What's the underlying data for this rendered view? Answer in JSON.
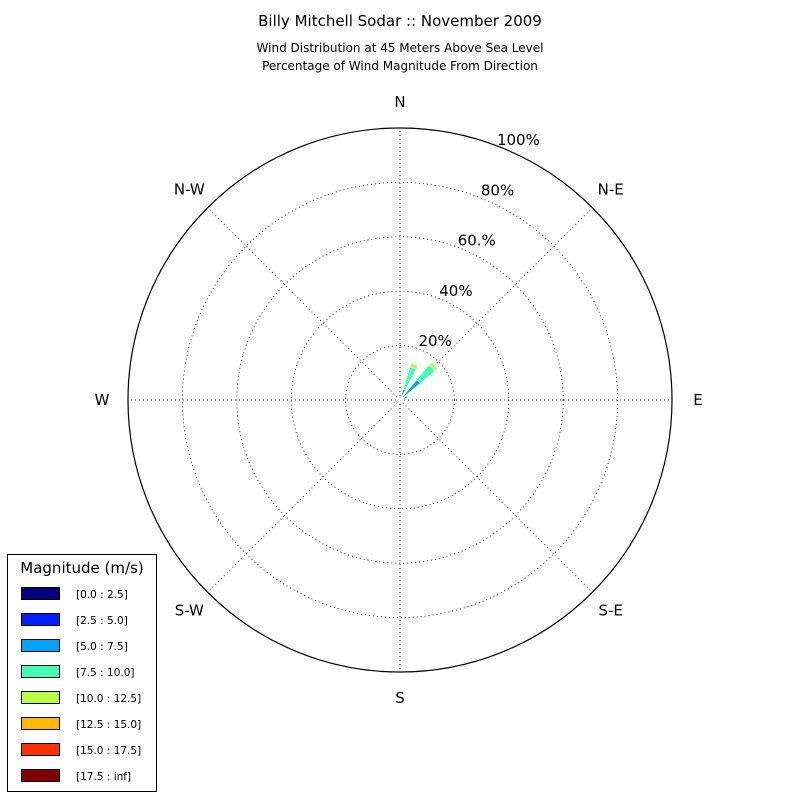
{
  "chart_data": {
    "type": "polar-bar",
    "title": "Billy Mitchell Sodar :: November 2009",
    "subtitle_lines": [
      "Wind Distribution at 45 Meters Above Sea Level",
      "Percentage of Wind Magnitude From Direction"
    ],
    "direction_labels": [
      "N",
      "N-E",
      "E",
      "S-E",
      "S",
      "S-W",
      "W",
      "N-W"
    ],
    "radial_ticks": [
      {
        "value": 20,
        "label": "20%"
      },
      {
        "value": 40,
        "label": "40%"
      },
      {
        "value": 60,
        "label": "60.%"
      },
      {
        "value": 80,
        "label": "80%"
      },
      {
        "value": 100,
        "label": "100%"
      }
    ],
    "rmax": 100,
    "sector_width_deg": 11.25,
    "grid": true,
    "legend_title": "Magnitude (m/s)",
    "legend_placement": "lower-left",
    "bins": [
      {
        "label": "[0.0 : 2.5]",
        "color": "#000080"
      },
      {
        "label": "[2.5 : 5.0]",
        "color": "#0020ff"
      },
      {
        "label": "[5.0 : 7.5]",
        "color": "#00a4ff"
      },
      {
        "label": "[7.5 : 10.0]",
        "color": "#40ffb7"
      },
      {
        "label": "[10.0 : 12.5]",
        "color": "#b7ff40"
      },
      {
        "label": "[12.5 : 15.0]",
        "color": "#ffb900"
      },
      {
        "label": "[15.0 : 17.5]",
        "color": "#ff3000"
      },
      {
        "label": "[17.5 : inf]",
        "color": "#800000"
      }
    ],
    "sectors": [
      {
        "direction_deg": 22.5,
        "values": [
          0.2,
          0.5,
          3.5,
          8.5,
          1.5,
          0,
          0,
          0
        ]
      },
      {
        "direction_deg": 45,
        "values": [
          0.2,
          0.5,
          9,
          7,
          1.2,
          0,
          0,
          0
        ]
      },
      {
        "direction_deg": 67.5,
        "values": [
          0.2,
          0.5,
          2.5,
          0.3,
          0,
          0,
          0,
          0
        ]
      },
      {
        "direction_deg": 90,
        "values": [
          0.2,
          0.4,
          0.3,
          0,
          0,
          0,
          0,
          0
        ]
      },
      {
        "direction_deg": 202.5,
        "values": [
          0.1,
          0.3,
          0.5,
          0,
          0,
          0,
          0,
          0
        ]
      },
      {
        "direction_deg": 225,
        "values": [
          0.2,
          0.4,
          1.5,
          0.5,
          0,
          0,
          0,
          0
        ]
      },
      {
        "direction_deg": 247.5,
        "values": [
          0.2,
          0.3,
          2.0,
          0.5,
          0.5,
          0,
          0,
          0
        ]
      },
      {
        "direction_deg": 270,
        "values": [
          0.2,
          0.3,
          1.0,
          0,
          0,
          0,
          0,
          0
        ]
      },
      {
        "direction_deg": 292.5,
        "values": [
          0.1,
          0.3,
          0.3,
          0,
          0,
          0,
          0,
          0
        ]
      },
      {
        "direction_deg": 315,
        "values": [
          0.1,
          0.2,
          0.2,
          0,
          0,
          0,
          0,
          0
        ]
      },
      {
        "direction_deg": 337.5,
        "values": [
          0.1,
          0.2,
          0,
          0,
          0,
          0,
          0,
          0
        ]
      },
      {
        "direction_deg": 0,
        "values": [
          0.1,
          0.2,
          0.3,
          0,
          0,
          0,
          0,
          0
        ]
      }
    ]
  }
}
